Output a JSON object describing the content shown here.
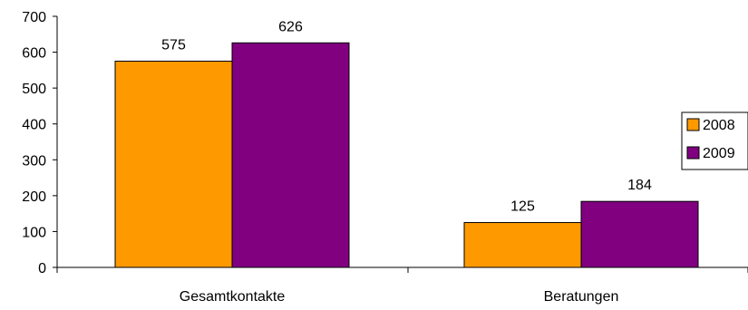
{
  "chart_data": {
    "type": "bar",
    "categories": [
      "Gesamtkontakte",
      "Beratungen"
    ],
    "series": [
      {
        "name": "2008",
        "values": [
          575,
          125
        ],
        "color": "#FF9900"
      },
      {
        "name": "2009",
        "values": [
          626,
          184
        ],
        "color": "#800080"
      }
    ],
    "ylim": [
      0,
      700
    ],
    "yticks": [
      0,
      100,
      200,
      300,
      400,
      500,
      600,
      700
    ],
    "grid": false,
    "legend": "right",
    "data_labels": true
  }
}
